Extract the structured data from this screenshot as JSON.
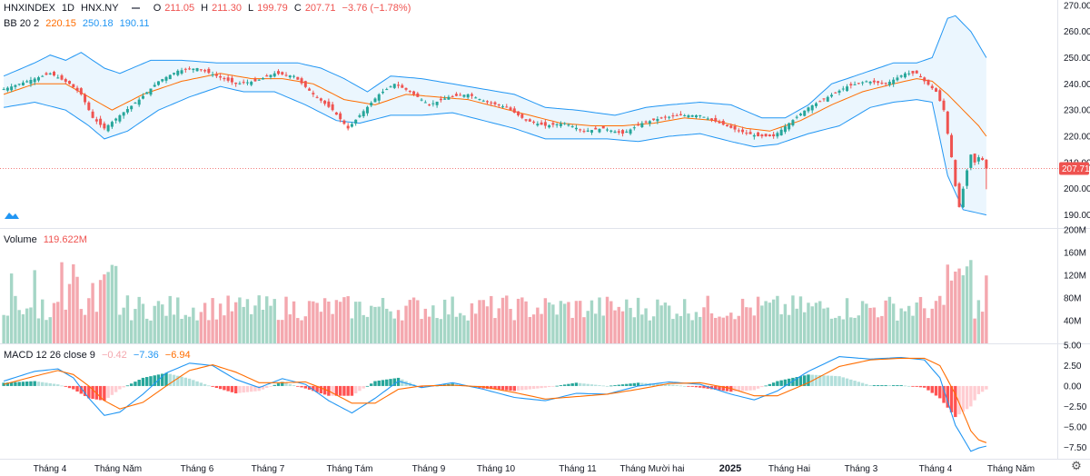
{
  "header": {
    "symbol": "HNXINDEX",
    "interval": "1D",
    "exchange": "HNX.NY",
    "o_label": "O",
    "o_value": "211.05",
    "h_label": "H",
    "h_value": "211.30",
    "l_label": "L",
    "l_value": "199.79",
    "c_label": "C",
    "c_value": "207.71",
    "change": "−3.76 (−1.78%)",
    "bb_label": "BB 20 2",
    "bb_basis": "220.15",
    "bb_upper": "250.18",
    "bb_lower": "190.11",
    "volume_label": "Volume",
    "volume_value": "119.622M",
    "macd_label": "MACD 12 26 close 9",
    "macd_hist": "−0.42",
    "macd_line": "−7.36",
    "macd_signal": "−6.94"
  },
  "colors": {
    "up": "#26a69a",
    "down": "#ef5350",
    "vol_up": "#a5d6c6",
    "vol_down": "#f4a7ae",
    "bb_band": "#2196f3",
    "bb_basis": "#ff6d00",
    "bb_fill": "#e3f2fd",
    "macd_line": "#2196f3",
    "signal_line": "#ff6d00",
    "hist_up_strong": "#26a69a",
    "hist_up_weak": "#b2dfdb",
    "hist_down_strong": "#ff5252",
    "hist_down_weak": "#ffcdd2",
    "last_price_tag": "#ef5350",
    "axis_text": "#131722",
    "grid": "#f0f3fa"
  },
  "chart_data": [
    {
      "type": "candlestick",
      "title": "HNXINDEX 1D",
      "price_axis_ticks": [
        "270.00",
        "260.00",
        "250.00",
        "240.00",
        "230.00",
        "220.00",
        "210.00",
        "200.00",
        "190.00"
      ],
      "last_price": "207.71",
      "ylim": [
        185,
        272
      ],
      "x_axis_labels": [
        "Tháng 4",
        "Tháng Năm",
        "Tháng 6",
        "Tháng 7",
        "Tháng Tám",
        "Tháng 9",
        "Tháng 10",
        "Tháng 11",
        "Tháng Mười hai",
        "2025",
        "Tháng Hai",
        "Tháng 3",
        "Tháng 4",
        "Tháng Năm"
      ],
      "close_anchors": [
        [
          0,
          238
        ],
        [
          6,
          241
        ],
        [
          12,
          244
        ],
        [
          17,
          240
        ],
        [
          20,
          236
        ],
        [
          23,
          227
        ],
        [
          26,
          223
        ],
        [
          30,
          228
        ],
        [
          35,
          234
        ],
        [
          40,
          241
        ],
        [
          45,
          245
        ],
        [
          50,
          246
        ],
        [
          55,
          243
        ],
        [
          60,
          240
        ],
        [
          65,
          241
        ],
        [
          70,
          244
        ],
        [
          75,
          243
        ],
        [
          80,
          236
        ],
        [
          85,
          230
        ],
        [
          89,
          223
        ],
        [
          92,
          228
        ],
        [
          97,
          236
        ],
        [
          101,
          240
        ],
        [
          105,
          237
        ],
        [
          110,
          232
        ],
        [
          115,
          235
        ],
        [
          120,
          236
        ],
        [
          125,
          233
        ],
        [
          130,
          231
        ],
        [
          135,
          226
        ],
        [
          140,
          224
        ],
        [
          145,
          225
        ],
        [
          150,
          222
        ],
        [
          155,
          223
        ],
        [
          160,
          221
        ],
        [
          165,
          225
        ],
        [
          170,
          227
        ],
        [
          175,
          228
        ],
        [
          180,
          228
        ],
        [
          185,
          225
        ],
        [
          190,
          222
        ],
        [
          195,
          220
        ],
        [
          199,
          220
        ],
        [
          203,
          225
        ],
        [
          208,
          231
        ],
        [
          213,
          235
        ],
        [
          218,
          239
        ],
        [
          223,
          241
        ],
        [
          228,
          240
        ],
        [
          233,
          244
        ],
        [
          236,
          244
        ],
        [
          238,
          241
        ],
        [
          241,
          237
        ],
        [
          243,
          230
        ],
        [
          245,
          212
        ],
        [
          246,
          201
        ],
        [
          247,
          193
        ],
        [
          248,
          200
        ],
        [
          249,
          207
        ],
        [
          250,
          213
        ],
        [
          251,
          210
        ],
        [
          252,
          212
        ],
        [
          253,
          211
        ],
        [
          254,
          207.71
        ]
      ],
      "bb_upper_anchors": [
        [
          0,
          243
        ],
        [
          8,
          248
        ],
        [
          12,
          251
        ],
        [
          16,
          249
        ],
        [
          20,
          252
        ],
        [
          26,
          246
        ],
        [
          30,
          244
        ],
        [
          38,
          249
        ],
        [
          46,
          249
        ],
        [
          55,
          248
        ],
        [
          62,
          248
        ],
        [
          70,
          248
        ],
        [
          76,
          248
        ],
        [
          82,
          246
        ],
        [
          88,
          242
        ],
        [
          94,
          237
        ],
        [
          100,
          243
        ],
        [
          108,
          242
        ],
        [
          116,
          240
        ],
        [
          124,
          238
        ],
        [
          132,
          236
        ],
        [
          140,
          231
        ],
        [
          148,
          230
        ],
        [
          158,
          228
        ],
        [
          166,
          231
        ],
        [
          172,
          232
        ],
        [
          180,
          233
        ],
        [
          188,
          232
        ],
        [
          196,
          227
        ],
        [
          202,
          227
        ],
        [
          208,
          232
        ],
        [
          214,
          240
        ],
        [
          222,
          244
        ],
        [
          230,
          248
        ],
        [
          236,
          248
        ],
        [
          240,
          250
        ],
        [
          244,
          265
        ],
        [
          246,
          266
        ],
        [
          250,
          260
        ],
        [
          254,
          250
        ]
      ],
      "bb_basis_anchors": [
        [
          0,
          236
        ],
        [
          8,
          240
        ],
        [
          16,
          240
        ],
        [
          22,
          235
        ],
        [
          28,
          230
        ],
        [
          36,
          236
        ],
        [
          46,
          241
        ],
        [
          56,
          244
        ],
        [
          64,
          242
        ],
        [
          72,
          242
        ],
        [
          80,
          240
        ],
        [
          88,
          234
        ],
        [
          96,
          232
        ],
        [
          104,
          236
        ],
        [
          112,
          235
        ],
        [
          120,
          234
        ],
        [
          128,
          231
        ],
        [
          136,
          228
        ],
        [
          144,
          225
        ],
        [
          152,
          224
        ],
        [
          160,
          224
        ],
        [
          168,
          225
        ],
        [
          176,
          227
        ],
        [
          184,
          226
        ],
        [
          192,
          223
        ],
        [
          198,
          222
        ],
        [
          206,
          226
        ],
        [
          214,
          232
        ],
        [
          222,
          237
        ],
        [
          230,
          240
        ],
        [
          236,
          242
        ],
        [
          240,
          241
        ],
        [
          244,
          236
        ],
        [
          248,
          230
        ],
        [
          252,
          224
        ],
        [
          254,
          220
        ]
      ],
      "bb_lower_anchors": [
        [
          0,
          231
        ],
        [
          8,
          233
        ],
        [
          16,
          230
        ],
        [
          22,
          224
        ],
        [
          26,
          219
        ],
        [
          32,
          222
        ],
        [
          40,
          230
        ],
        [
          48,
          235
        ],
        [
          56,
          239
        ],
        [
          62,
          237
        ],
        [
          70,
          237
        ],
        [
          78,
          232
        ],
        [
          86,
          226
        ],
        [
          92,
          225
        ],
        [
          100,
          228
        ],
        [
          108,
          228
        ],
        [
          116,
          229
        ],
        [
          124,
          226
        ],
        [
          132,
          223
        ],
        [
          140,
          219
        ],
        [
          148,
          219
        ],
        [
          156,
          219
        ],
        [
          164,
          218
        ],
        [
          172,
          220
        ],
        [
          180,
          221
        ],
        [
          188,
          218
        ],
        [
          194,
          216
        ],
        [
          200,
          217
        ],
        [
          208,
          221
        ],
        [
          216,
          224
        ],
        [
          224,
          231
        ],
        [
          230,
          233
        ],
        [
          236,
          234
        ],
        [
          240,
          233
        ],
        [
          244,
          205
        ],
        [
          248,
          192
        ],
        [
          254,
          190
        ]
      ]
    },
    {
      "type": "bar",
      "title": "Volume",
      "axis_ticks": [
        "200M",
        "160M",
        "120M",
        "80M",
        "40M"
      ],
      "ylim": [
        0,
        200
      ],
      "unit": "M",
      "last_value": "119.622M"
    },
    {
      "type": "line",
      "title": "MACD 12 26 close 9",
      "axis_ticks": [
        "5.00",
        "2.50",
        "0.00",
        "−2.50",
        "−5.00",
        "−7.50"
      ],
      "ylim": [
        -8.8,
        5.0
      ],
      "series": [
        {
          "name": "MACD",
          "anchors": [
            [
              0,
              0.6
            ],
            [
              8,
              1.8
            ],
            [
              14,
              2.1
            ],
            [
              18,
              1.0
            ],
            [
              22,
              -1.5
            ],
            [
              26,
              -3.6
            ],
            [
              30,
              -3.2
            ],
            [
              36,
              -1.0
            ],
            [
              42,
              1.6
            ],
            [
              48,
              2.8
            ],
            [
              54,
              2.5
            ],
            [
              60,
              0.8
            ],
            [
              66,
              -0.2
            ],
            [
              72,
              0.9
            ],
            [
              78,
              0.2
            ],
            [
              84,
              -1.8
            ],
            [
              90,
              -3.3
            ],
            [
              96,
              -1.5
            ],
            [
              102,
              0.6
            ],
            [
              108,
              -0.2
            ],
            [
              116,
              0.4
            ],
            [
              124,
              -0.4
            ],
            [
              132,
              -1.4
            ],
            [
              140,
              -1.8
            ],
            [
              148,
              -0.9
            ],
            [
              156,
              -1.0
            ],
            [
              164,
              0.0
            ],
            [
              172,
              0.5
            ],
            [
              180,
              0.2
            ],
            [
              188,
              -1.0
            ],
            [
              194,
              -1.7
            ],
            [
              200,
              -0.6
            ],
            [
              208,
              1.8
            ],
            [
              216,
              3.6
            ],
            [
              224,
              3.3
            ],
            [
              232,
              3.5
            ],
            [
              238,
              3.2
            ],
            [
              242,
              1.0
            ],
            [
              246,
              -4.8
            ],
            [
              250,
              -8.0
            ],
            [
              252,
              -7.6
            ],
            [
              254,
              -7.36
            ]
          ]
        },
        {
          "name": "Signal",
          "anchors": [
            [
              0,
              0.2
            ],
            [
              8,
              1.2
            ],
            [
              14,
              1.9
            ],
            [
              18,
              1.4
            ],
            [
              22,
              0.0
            ],
            [
              26,
              -1.8
            ],
            [
              30,
              -2.8
            ],
            [
              36,
              -2.0
            ],
            [
              42,
              0.0
            ],
            [
              48,
              1.9
            ],
            [
              54,
              2.6
            ],
            [
              60,
              1.7
            ],
            [
              66,
              0.4
            ],
            [
              72,
              0.4
            ],
            [
              78,
              0.5
            ],
            [
              84,
              -0.6
            ],
            [
              90,
              -2.1
            ],
            [
              96,
              -2.1
            ],
            [
              102,
              -0.4
            ],
            [
              108,
              0.0
            ],
            [
              116,
              0.1
            ],
            [
              124,
              -0.1
            ],
            [
              132,
              -0.8
            ],
            [
              140,
              -1.6
            ],
            [
              148,
              -1.3
            ],
            [
              156,
              -1.0
            ],
            [
              164,
              -0.4
            ],
            [
              172,
              0.3
            ],
            [
              180,
              0.4
            ],
            [
              188,
              -0.3
            ],
            [
              194,
              -1.2
            ],
            [
              200,
              -1.2
            ],
            [
              208,
              0.4
            ],
            [
              216,
              2.4
            ],
            [
              224,
              3.2
            ],
            [
              232,
              3.4
            ],
            [
              238,
              3.4
            ],
            [
              242,
              2.5
            ],
            [
              246,
              -1.0
            ],
            [
              250,
              -5.5
            ],
            [
              252,
              -6.6
            ],
            [
              254,
              -6.94
            ]
          ]
        }
      ]
    }
  ]
}
